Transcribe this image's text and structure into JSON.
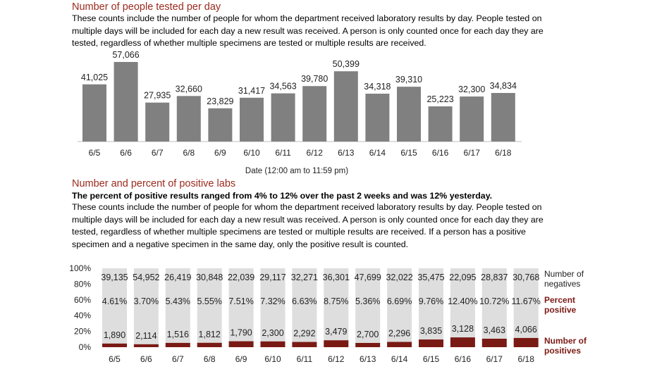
{
  "section1": {
    "title": "Number of people tested per day",
    "description": "These counts include the number of people for whom the department received laboratory results by day. People tested on multiple days will be included for each day a new result was received. A person is only counted once for each day they are tested, regardless of whether multiple specimens are tested or multiple results are received."
  },
  "section2": {
    "title": "Number and percent of positive labs",
    "summary": "The percent of positive results ranged from 4% to 12% over the past 2 weeks and was 12% yesterday.",
    "description": "These counts include the number of people for whom the department received laboratory results by day. People tested on multiple days will be included for each day a new result was received. A person is only counted once for each day they are tested, regardless of whether multiple specimens are tested or multiple results are received. If a person has a positive specimen and a negative specimen in the same day, only the positive result is counted."
  },
  "colors": {
    "title": "#9b2a1e",
    "bar_gray": "#808080",
    "negatives_bar": "#dedede",
    "positives_bar": "#7a1a14"
  },
  "chart_data": [
    {
      "type": "bar",
      "categories": [
        "6/5",
        "6/6",
        "6/7",
        "6/8",
        "6/9",
        "6/10",
        "6/11",
        "6/12",
        "6/13",
        "6/14",
        "6/15",
        "6/16",
        "6/17",
        "6/18"
      ],
      "values": [
        41025,
        57066,
        27935,
        32660,
        23829,
        31417,
        34563,
        39780,
        50399,
        34318,
        39310,
        25223,
        32300,
        34834
      ],
      "value_labels": [
        "41,025",
        "57,066",
        "27,935",
        "32,660",
        "23,829",
        "31,417",
        "34,563",
        "39,780",
        "50,399",
        "34,318",
        "39,310",
        "25,223",
        "32,300",
        "34,834"
      ],
      "xlabel": "Date (12:00 am to 11:59 pm)",
      "ylim": [
        0,
        60000
      ],
      "grid": false
    },
    {
      "type": "bar",
      "stacked_percent": true,
      "categories": [
        "6/5",
        "6/6",
        "6/7",
        "6/8",
        "6/9",
        "6/10",
        "6/11",
        "6/12",
        "6/13",
        "6/14",
        "6/15",
        "6/16",
        "6/17",
        "6/18"
      ],
      "series": [
        {
          "name": "Number of negatives",
          "values": [
            39135,
            54952,
            26419,
            30848,
            22039,
            29117,
            32271,
            36301,
            47699,
            32022,
            35475,
            22095,
            28837,
            30768
          ],
          "labels": [
            "39,135",
            "54,952",
            "26,419",
            "30,848",
            "22,039",
            "29,117",
            "32,271",
            "36,301",
            "47,699",
            "32,022",
            "35,475",
            "22,095",
            "28,837",
            "30,768"
          ]
        },
        {
          "name": "Number of positives",
          "values": [
            1890,
            2114,
            1516,
            1812,
            1790,
            2300,
            2292,
            3479,
            2700,
            2296,
            3835,
            3128,
            3463,
            4066
          ],
          "labels": [
            "1,890",
            "2,114",
            "1,516",
            "1,812",
            "1,790",
            "2,300",
            "2,292",
            "3,479",
            "2,700",
            "2,296",
            "3,835",
            "3,128",
            "3,463",
            "4,066"
          ]
        }
      ],
      "percent_positive": {
        "name": "Percent positive",
        "values": [
          4.61,
          3.7,
          5.43,
          5.55,
          7.51,
          7.32,
          6.63,
          8.75,
          5.36,
          6.69,
          9.76,
          12.4,
          10.72,
          11.67
        ],
        "labels": [
          "4.61%",
          "3.70%",
          "5.43%",
          "5.55%",
          "7.51%",
          "7.32%",
          "6.63%",
          "8.75%",
          "5.36%",
          "6.69%",
          "9.76%",
          "12.40%",
          "10.72%",
          "11.67%"
        ]
      },
      "yticks": [
        "100%",
        "80%",
        "60%",
        "40%",
        "20%",
        "0%"
      ],
      "legend": [
        "Number of negatives",
        "Percent positive",
        "Number of positives"
      ],
      "legend_placement": "right",
      "ylim": [
        0,
        100
      ],
      "grid": false
    }
  ]
}
